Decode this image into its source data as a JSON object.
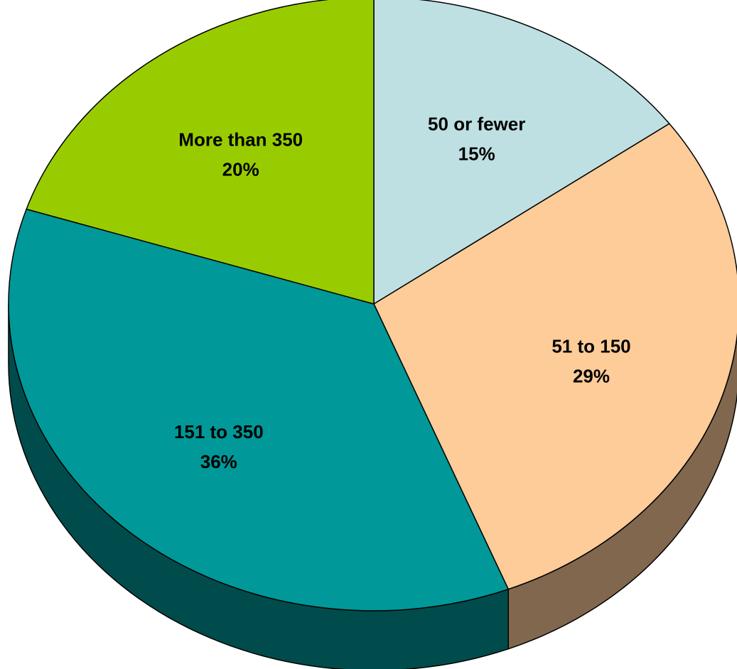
{
  "chart_data": {
    "type": "pie",
    "style": "3d",
    "title": "",
    "slices": [
      {
        "label": "50 or fewer",
        "value": 15,
        "value_label": "15%",
        "color": "#BEE0E2",
        "side_color": "#7C8E8F"
      },
      {
        "label": "51 to 150",
        "value": 29,
        "value_label": "29%",
        "color": "#FDCC99",
        "side_color": "#80674E"
      },
      {
        "label": "151 to 350",
        "value": 36,
        "value_label": "36%",
        "color": "#009898",
        "side_color": "#004C4C"
      },
      {
        "label": "More than 350",
        "value": 20,
        "value_label": "20%",
        "color": "#99CC00",
        "side_color": "#4C6600"
      }
    ],
    "start_angle_deg": 90,
    "direction": "clockwise",
    "outline_color": "#000000"
  }
}
